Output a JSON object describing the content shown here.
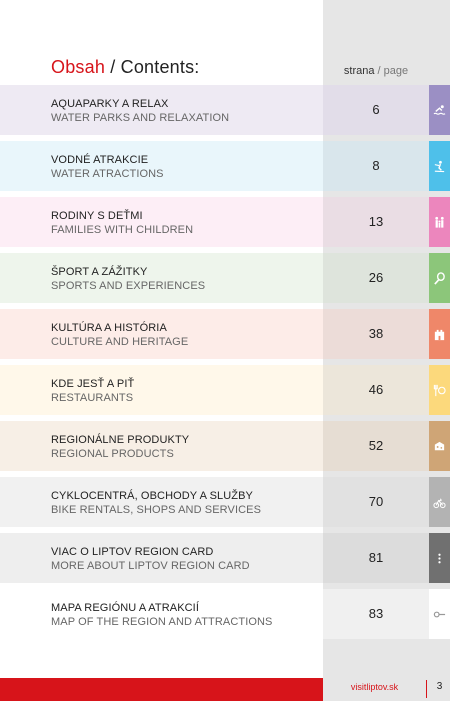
{
  "header": {
    "title_red": "Obsah",
    "title_rest": " / Contents:",
    "page_label_bold": "strana",
    "page_label_light": " / page"
  },
  "rows": [
    {
      "sk": "AQUAPARKY A RELAX",
      "en": "WATER PARKS AND RELAXATION",
      "page": "6",
      "icon": "swimmer-icon",
      "row_bg": "#eeeaf3",
      "num_bg": "#e2dde9",
      "tab_color": "#9b8fc4"
    },
    {
      "sk": "VODNÉ ATRAKCIE",
      "en": "WATER ATRACTIONS",
      "page": "8",
      "icon": "water-skier-icon",
      "row_bg": "#e9f6fb",
      "num_bg": "#d9e6ec",
      "tab_color": "#4ec0ea"
    },
    {
      "sk": "RODINY S DEŤMI",
      "en": "FAMILIES WITH CHILDREN",
      "page": "13",
      "icon": "family-icon",
      "row_bg": "#fdeef6",
      "num_bg": "#eadde4",
      "tab_color": "#ec86bd"
    },
    {
      "sk": "ŠPORT A ZÁŽITKY",
      "en": "SPORTS AND EXPERIENCES",
      "page": "26",
      "icon": "tennis-racket-icon",
      "row_bg": "#eef5ec",
      "num_bg": "#dee4dc",
      "tab_color": "#8cc67a"
    },
    {
      "sk": "KULTÚRA A HISTÓRIA",
      "en": "CULTURE AND HERITAGE",
      "page": "38",
      "icon": "castle-icon",
      "row_bg": "#fdece8",
      "num_bg": "#ecdcd8",
      "tab_color": "#ef8769"
    },
    {
      "sk": "KDE JESŤ A PIŤ",
      "en": "RESTAURANTS",
      "page": "46",
      "icon": "cutlery-icon",
      "row_bg": "#fff8ea",
      "num_bg": "#ece6da",
      "tab_color": "#fcd97c"
    },
    {
      "sk": "REGIONÁLNE PRODUKTY",
      "en": "REGIONAL PRODUCTS",
      "page": "52",
      "icon": "cheese-icon",
      "row_bg": "#f7efe6",
      "num_bg": "#e6ddd3",
      "tab_color": "#cfa576"
    },
    {
      "sk": "CYKLOCENTRÁ, OBCHODY A SLUŽBY",
      "en": "BIKE RENTALS, SHOPS AND SERVICES",
      "page": "70",
      "icon": "bicycle-icon",
      "row_bg": "#f1f1f1",
      "num_bg": "#e1e1e1",
      "tab_color": "#b3b3b3"
    },
    {
      "sk": "VIAC O LIPTOV REGION CARD",
      "en": "MORE ABOUT LIPTOV REGION CARD",
      "page": "81",
      "icon": "more-dots-icon",
      "row_bg": "#eeeeee",
      "num_bg": "#dcdcdc",
      "tab_color": "#707070"
    },
    {
      "sk": "MAPA REGIÓNU A ATRAKCIÍ",
      "en": "MAP OF THE REGION AND ATTRACTIONS",
      "page": "83",
      "icon": "map-pin-icon",
      "row_bg": "#ffffff",
      "num_bg": "#f0f0f0",
      "tab_color": "#ffffff"
    }
  ],
  "footer": {
    "url": "visitliptov.sk",
    "page_number": "3",
    "accent_color": "#d7141a"
  }
}
